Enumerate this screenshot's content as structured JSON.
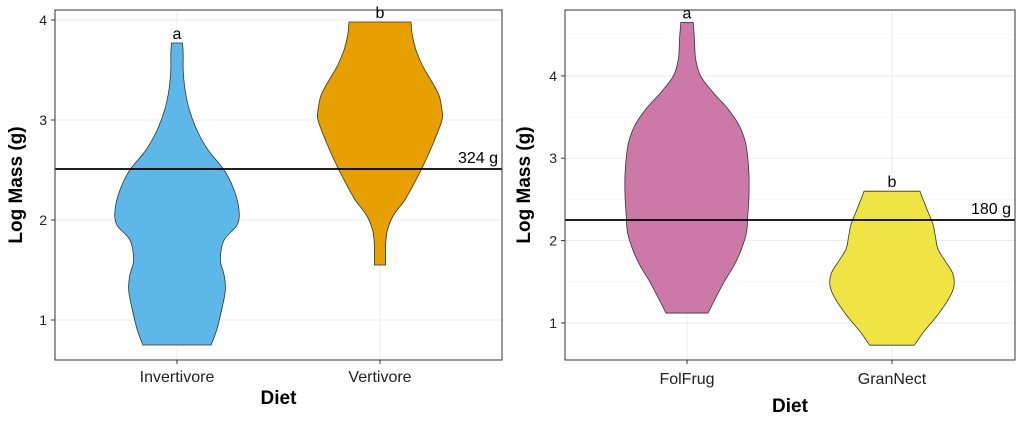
{
  "chart_data": [
    {
      "type": "violin",
      "title": "",
      "xlabel": "Diet",
      "ylabel": "Log Mass (g)",
      "ylim": [
        0.6,
        4.1
      ],
      "yticks": [
        "1",
        "2",
        "3",
        "4"
      ],
      "grid": true,
      "categories": [
        "Invertivore",
        "Vertivore"
      ],
      "series": [
        {
          "category": "Invertivore",
          "color": "#5DB7E9",
          "min": 0.75,
          "max": 3.77,
          "letter": "a",
          "density": [
            [
              0.75,
              0.55
            ],
            [
              0.9,
              0.64
            ],
            [
              1.1,
              0.72
            ],
            [
              1.3,
              0.78
            ],
            [
              1.45,
              0.76
            ],
            [
              1.6,
              0.7
            ],
            [
              1.8,
              0.76
            ],
            [
              1.95,
              0.97
            ],
            [
              2.1,
              1.0
            ],
            [
              2.3,
              0.92
            ],
            [
              2.5,
              0.76
            ],
            [
              2.7,
              0.5
            ],
            [
              2.9,
              0.32
            ],
            [
              3.1,
              0.2
            ],
            [
              3.3,
              0.13
            ],
            [
              3.5,
              0.1
            ],
            [
              3.65,
              0.1
            ],
            [
              3.77,
              0.09
            ]
          ]
        },
        {
          "category": "Vertivore",
          "color": "#E8A000",
          "min": 1.55,
          "max": 3.98,
          "letter": "b",
          "density": [
            [
              1.55,
              0.09
            ],
            [
              1.75,
              0.09
            ],
            [
              1.9,
              0.12
            ],
            [
              2.05,
              0.22
            ],
            [
              2.2,
              0.4
            ],
            [
              2.4,
              0.58
            ],
            [
              2.6,
              0.74
            ],
            [
              2.8,
              0.88
            ],
            [
              3.0,
              1.0
            ],
            [
              3.1,
              1.0
            ],
            [
              3.25,
              0.95
            ],
            [
              3.4,
              0.82
            ],
            [
              3.55,
              0.68
            ],
            [
              3.7,
              0.58
            ],
            [
              3.85,
              0.52
            ],
            [
              3.98,
              0.5
            ]
          ]
        }
      ],
      "reference_line": {
        "y": 2.51,
        "label": "324 g"
      }
    },
    {
      "type": "violin",
      "title": "",
      "xlabel": "Diet",
      "ylabel": "Log Mass (g)",
      "ylim": [
        0.55,
        4.8
      ],
      "yticks": [
        "1",
        "2",
        "3",
        "4"
      ],
      "grid": true,
      "categories": [
        "FolFrug",
        "GranNect"
      ],
      "series": [
        {
          "category": "FolFrug",
          "color": "#CC79A7",
          "min": 1.12,
          "max": 4.65,
          "letter": "a",
          "density": [
            [
              1.12,
              0.34
            ],
            [
              1.3,
              0.46
            ],
            [
              1.5,
              0.6
            ],
            [
              1.7,
              0.76
            ],
            [
              1.9,
              0.88
            ],
            [
              2.1,
              0.96
            ],
            [
              2.3,
              0.98
            ],
            [
              2.55,
              1.0
            ],
            [
              2.8,
              1.0
            ],
            [
              3.0,
              0.98
            ],
            [
              3.2,
              0.94
            ],
            [
              3.4,
              0.84
            ],
            [
              3.6,
              0.66
            ],
            [
              3.8,
              0.42
            ],
            [
              4.0,
              0.22
            ],
            [
              4.2,
              0.14
            ],
            [
              4.45,
              0.12
            ],
            [
              4.65,
              0.1
            ]
          ]
        },
        {
          "category": "GranNect",
          "color": "#F0E442",
          "min": 0.73,
          "max": 2.6,
          "letter": "b",
          "density": [
            [
              0.73,
              0.36
            ],
            [
              0.9,
              0.52
            ],
            [
              1.1,
              0.74
            ],
            [
              1.3,
              0.92
            ],
            [
              1.45,
              1.0
            ],
            [
              1.6,
              0.98
            ],
            [
              1.75,
              0.86
            ],
            [
              1.9,
              0.74
            ],
            [
              2.05,
              0.7
            ],
            [
              2.2,
              0.66
            ],
            [
              2.35,
              0.58
            ],
            [
              2.5,
              0.5
            ],
            [
              2.6,
              0.45
            ]
          ]
        }
      ],
      "reference_line": {
        "y": 2.25,
        "label": "180 g"
      }
    }
  ]
}
